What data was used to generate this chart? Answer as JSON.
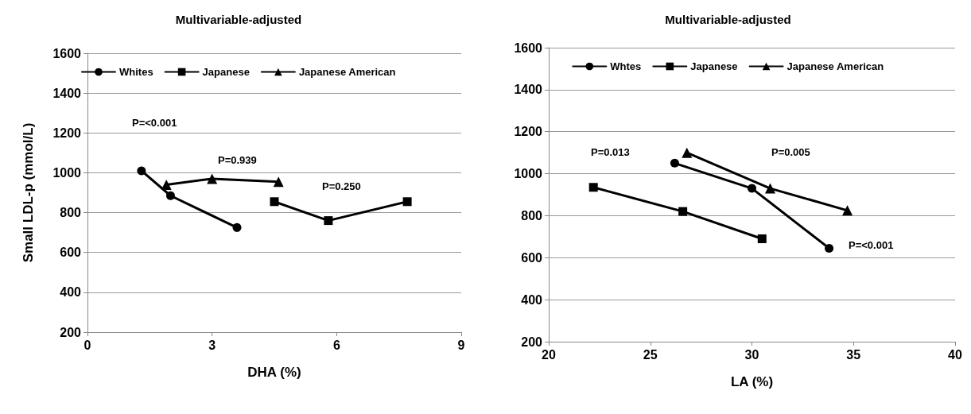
{
  "chart_data": [
    {
      "type": "line",
      "title": "Multivariable-adjusted",
      "xlabel": "DHA (%)",
      "ylabel": "Small LDL-p (mmol/L)",
      "xlim": [
        0,
        9
      ],
      "xticks": [
        0,
        3,
        6,
        9
      ],
      "ylim": [
        200,
        1600
      ],
      "yticks": [
        200,
        400,
        600,
        800,
        1000,
        1200,
        1400,
        1600
      ],
      "grid": "y",
      "legend": "top",
      "series": [
        {
          "name": "Whites",
          "color": "#000000",
          "marker": "circle",
          "x": [
            1.3,
            2.0,
            3.6
          ],
          "values": [
            1010,
            885,
            725
          ]
        },
        {
          "name": "Japanese",
          "color": "#000000",
          "marker": "square",
          "x": [
            4.5,
            5.8,
            7.7
          ],
          "values": [
            855,
            760,
            855
          ]
        },
        {
          "name": "Japanese American",
          "color": "#000000",
          "marker": "triangle",
          "x": [
            1.9,
            3.0,
            4.6
          ],
          "values": [
            940,
            970,
            955
          ]
        }
      ],
      "annotations": [
        "P=<0.001",
        "P=0.939",
        "P=0.250"
      ]
    },
    {
      "type": "line",
      "title": "Multivariable-adjusted",
      "xlabel": "LA (%)",
      "xlim": [
        20,
        40
      ],
      "xticks": [
        20,
        25,
        30,
        35,
        40
      ],
      "ylim": [
        200,
        1600
      ],
      "yticks": [
        200,
        400,
        600,
        800,
        1000,
        1200,
        1400,
        1600
      ],
      "grid": "y",
      "legend": "top",
      "series": [
        {
          "name": "Whtes",
          "color": "#000000",
          "marker": "circle",
          "x": [
            26.2,
            30.0,
            33.8
          ],
          "values": [
            1050,
            930,
            645
          ]
        },
        {
          "name": "Japanese",
          "color": "#000000",
          "marker": "square",
          "x": [
            22.2,
            26.6,
            30.5
          ],
          "values": [
            935,
            820,
            690
          ]
        },
        {
          "name": "Japanese American",
          "color": "#000000",
          "marker": "triangle",
          "x": [
            26.8,
            30.9,
            34.7
          ],
          "values": [
            1100,
            930,
            825
          ]
        }
      ],
      "annotations": [
        "P=0.013",
        "P=0.005",
        "P=<0.001"
      ]
    }
  ]
}
